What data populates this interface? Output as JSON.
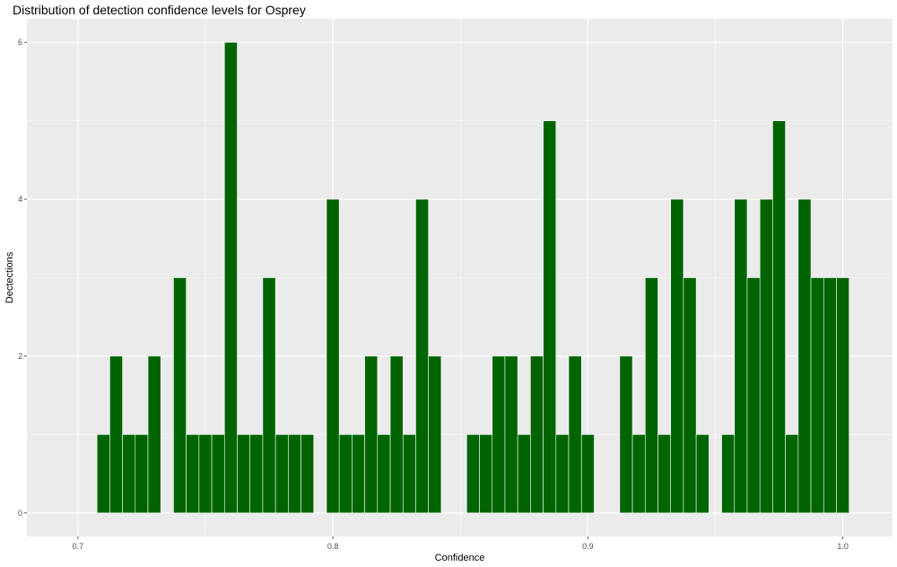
{
  "chart_data": {
    "type": "bar",
    "title": "Distribution of detection confidence levels for Osprey",
    "xlabel": "Confidence",
    "ylabel": "Dectections",
    "xlim": [
      0.68,
      1.0195
    ],
    "ylim": [
      -0.3,
      6.3
    ],
    "xticks": [
      0.7,
      0.8,
      0.9,
      1.0
    ],
    "xtick_labels": [
      "0.7",
      "0.8",
      "0.9",
      "1.0"
    ],
    "yticks": [
      0,
      2,
      4,
      6
    ],
    "ytick_labels": [
      "0",
      "2",
      "4",
      "6"
    ],
    "bin_width": 0.005,
    "grid": true,
    "bar_color": "#006400",
    "panel_color": "#ebebeb",
    "bins": [
      {
        "x": 0.71,
        "count": 1
      },
      {
        "x": 0.715,
        "count": 2
      },
      {
        "x": 0.72,
        "count": 1
      },
      {
        "x": 0.725,
        "count": 1
      },
      {
        "x": 0.73,
        "count": 2
      },
      {
        "x": 0.735,
        "count": 0
      },
      {
        "x": 0.74,
        "count": 3
      },
      {
        "x": 0.745,
        "count": 1
      },
      {
        "x": 0.75,
        "count": 1
      },
      {
        "x": 0.755,
        "count": 1
      },
      {
        "x": 0.76,
        "count": 6
      },
      {
        "x": 0.765,
        "count": 1
      },
      {
        "x": 0.77,
        "count": 1
      },
      {
        "x": 0.775,
        "count": 3
      },
      {
        "x": 0.78,
        "count": 1
      },
      {
        "x": 0.785,
        "count": 1
      },
      {
        "x": 0.79,
        "count": 1
      },
      {
        "x": 0.795,
        "count": 0
      },
      {
        "x": 0.8,
        "count": 4
      },
      {
        "x": 0.805,
        "count": 1
      },
      {
        "x": 0.81,
        "count": 1
      },
      {
        "x": 0.815,
        "count": 2
      },
      {
        "x": 0.82,
        "count": 1
      },
      {
        "x": 0.825,
        "count": 2
      },
      {
        "x": 0.83,
        "count": 1
      },
      {
        "x": 0.835,
        "count": 4
      },
      {
        "x": 0.84,
        "count": 2
      },
      {
        "x": 0.845,
        "count": 0
      },
      {
        "x": 0.85,
        "count": 0
      },
      {
        "x": 0.855,
        "count": 1
      },
      {
        "x": 0.86,
        "count": 1
      },
      {
        "x": 0.865,
        "count": 2
      },
      {
        "x": 0.87,
        "count": 2
      },
      {
        "x": 0.875,
        "count": 1
      },
      {
        "x": 0.88,
        "count": 2
      },
      {
        "x": 0.885,
        "count": 5
      },
      {
        "x": 0.89,
        "count": 1
      },
      {
        "x": 0.895,
        "count": 2
      },
      {
        "x": 0.9,
        "count": 1
      },
      {
        "x": 0.905,
        "count": 0
      },
      {
        "x": 0.91,
        "count": 0
      },
      {
        "x": 0.915,
        "count": 2
      },
      {
        "x": 0.92,
        "count": 1
      },
      {
        "x": 0.925,
        "count": 3
      },
      {
        "x": 0.93,
        "count": 1
      },
      {
        "x": 0.935,
        "count": 4
      },
      {
        "x": 0.94,
        "count": 3
      },
      {
        "x": 0.945,
        "count": 1
      },
      {
        "x": 0.95,
        "count": 0
      },
      {
        "x": 0.955,
        "count": 1
      },
      {
        "x": 0.96,
        "count": 4
      },
      {
        "x": 0.965,
        "count": 3
      },
      {
        "x": 0.97,
        "count": 4
      },
      {
        "x": 0.975,
        "count": 5
      },
      {
        "x": 0.98,
        "count": 1
      },
      {
        "x": 0.985,
        "count": 4
      },
      {
        "x": 0.99,
        "count": 3
      },
      {
        "x": 0.995,
        "count": 3
      },
      {
        "x": 1.0,
        "count": 3
      }
    ]
  }
}
